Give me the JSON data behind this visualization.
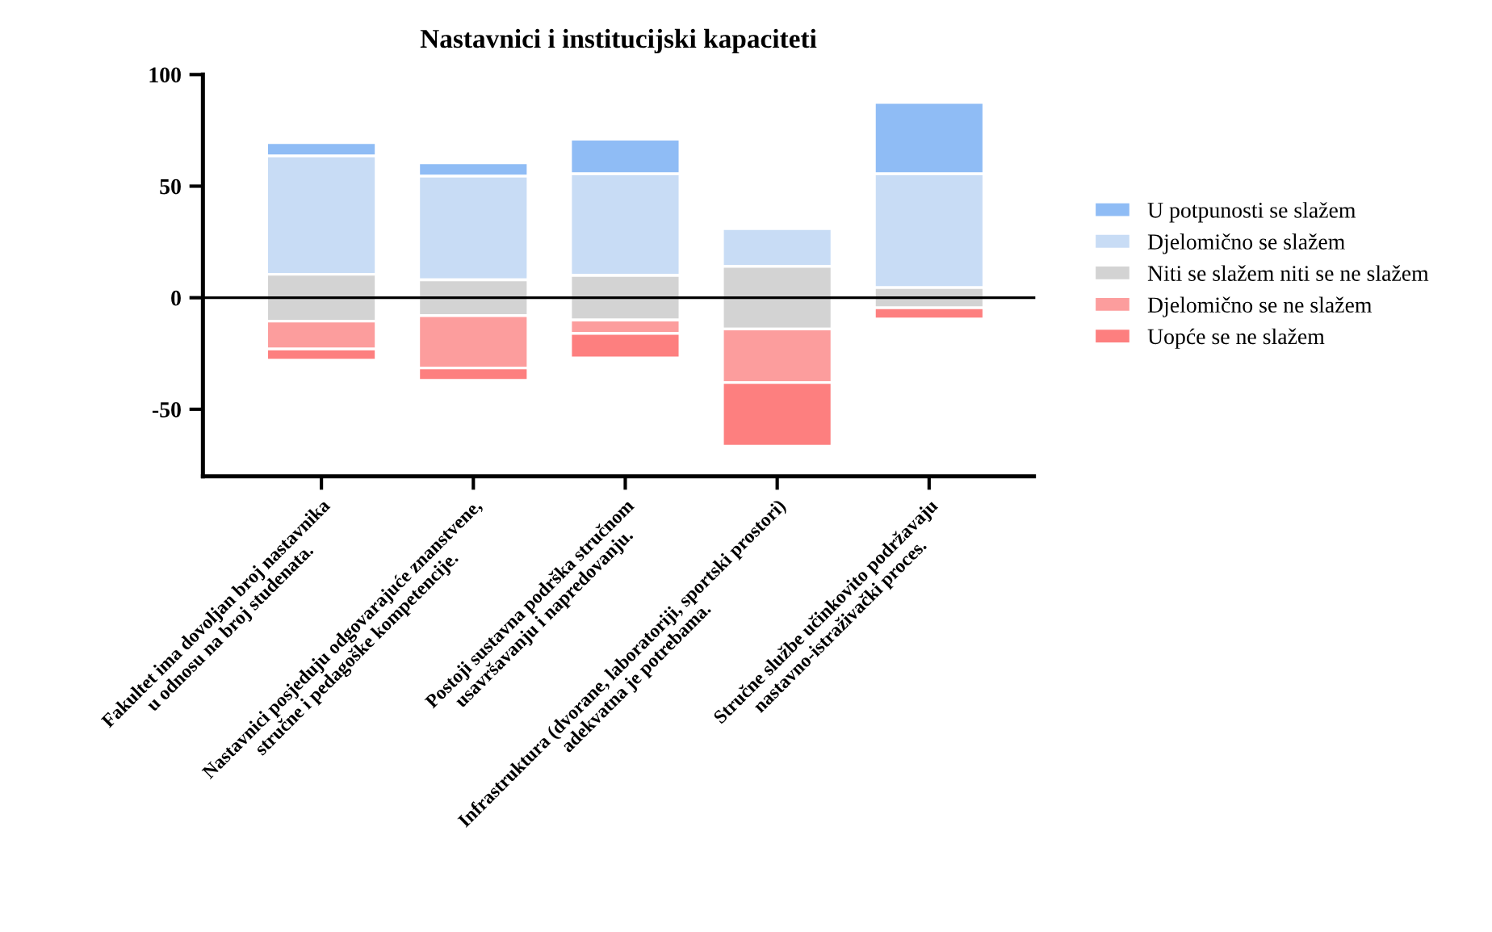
{
  "chart_data": {
    "type": "bar",
    "title": "Nastavnici i institucijski kapaciteti",
    "categories": [
      "Fakultet ima dovoljan broj nastavnika\nu odnosu na broj studenata.",
      "Nastavnici posjeduju odgovarajuće znanstvene,\nstručne i pedagoške kompetencije.",
      "Postoji sustavna podrška stručnom\nusavršavanju i napredovanju.",
      "Infrastruktura (dvorane, laboratoriji, sportski prostori)\nadekvatna je potrebama.",
      "Stručne službe učinkovito podržavaju\nnastavno-istraživački proces."
    ],
    "series": [
      {
        "name": "U potpunosti se slažem",
        "color": "#8fbcf5",
        "base": [
          63.5,
          54.5,
          55.5,
          null,
          55.5
        ],
        "values": [
          6,
          6,
          15.5,
          null,
          32
        ]
      },
      {
        "name": "Djelomično se slažem",
        "color": "#c8dcf5",
        "base": [
          10.5,
          8,
          10,
          14,
          4.5
        ],
        "values": [
          53,
          46.5,
          45.5,
          17,
          51
        ]
      },
      {
        "name": "Niti se slažem niti se ne slažem",
        "color": "#d3d3d3",
        "base": [
          -10.5,
          -8,
          -10,
          -14,
          -4.5
        ],
        "values": [
          21,
          16,
          20,
          28,
          9
        ]
      },
      {
        "name": "Djelomično se ne slažem",
        "color": "#fc9d9d",
        "base": [
          -10.5,
          -8,
          -10,
          -14,
          null
        ],
        "values": [
          -12.5,
          -23.5,
          -6,
          -24,
          null
        ]
      },
      {
        "name": "Uopće se ne slažem",
        "color": "#fd7f7f",
        "base": [
          -23,
          -31.5,
          -16,
          -38,
          -4.5
        ],
        "values": [
          -5,
          -5.5,
          -11,
          -28.5,
          -5
        ]
      }
    ],
    "ylim": [
      -80,
      100
    ],
    "yticks": [
      -50,
      0,
      50,
      100
    ],
    "ref_lines": [
      {
        "axis": "y",
        "value": 0,
        "color": "#000000"
      }
    ],
    "legend": "right",
    "grid": false
  }
}
